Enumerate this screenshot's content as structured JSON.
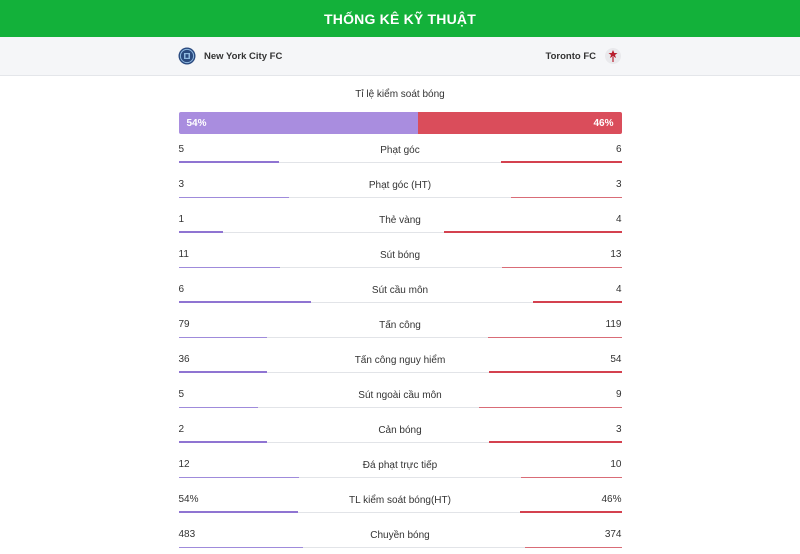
{
  "header": {
    "title": "THỐNG KÊ KỸ THUẬT"
  },
  "teams": {
    "home": {
      "name": "New York City FC",
      "logo_icon": "nycfc-logo-icon",
      "color": "#a98ddf"
    },
    "away": {
      "name": "Toronto FC",
      "logo_icon": "toronto-fc-logo-icon",
      "color": "#da4d5b"
    }
  },
  "possession": {
    "label": "Tỉ lệ kiểm soát bóng",
    "home": "54%",
    "away": "46%",
    "home_fraction": 0.54
  },
  "stats": [
    {
      "name": "Phạt góc",
      "home": "5",
      "away": "6"
    },
    {
      "name": "Phạt góc (HT)",
      "home": "3",
      "away": "3"
    },
    {
      "name": "Thẻ vàng",
      "home": "1",
      "away": "4"
    },
    {
      "name": "Sút bóng",
      "home": "11",
      "away": "13"
    },
    {
      "name": "Sút cầu môn",
      "home": "6",
      "away": "4"
    },
    {
      "name": "Tấn công",
      "home": "79",
      "away": "119"
    },
    {
      "name": "Tấn công nguy hiểm",
      "home": "36",
      "away": "54"
    },
    {
      "name": "Sút ngoài cầu môn",
      "home": "5",
      "away": "9"
    },
    {
      "name": "Cản bóng",
      "home": "2",
      "away": "3"
    },
    {
      "name": "Đá phạt trực tiếp",
      "home": "12",
      "away": "10"
    },
    {
      "name": "TL kiểm soát bóng(HT)",
      "home": "54%",
      "away": "46%"
    },
    {
      "name": "Chuyền bóng",
      "home": "483",
      "away": "374"
    }
  ]
}
